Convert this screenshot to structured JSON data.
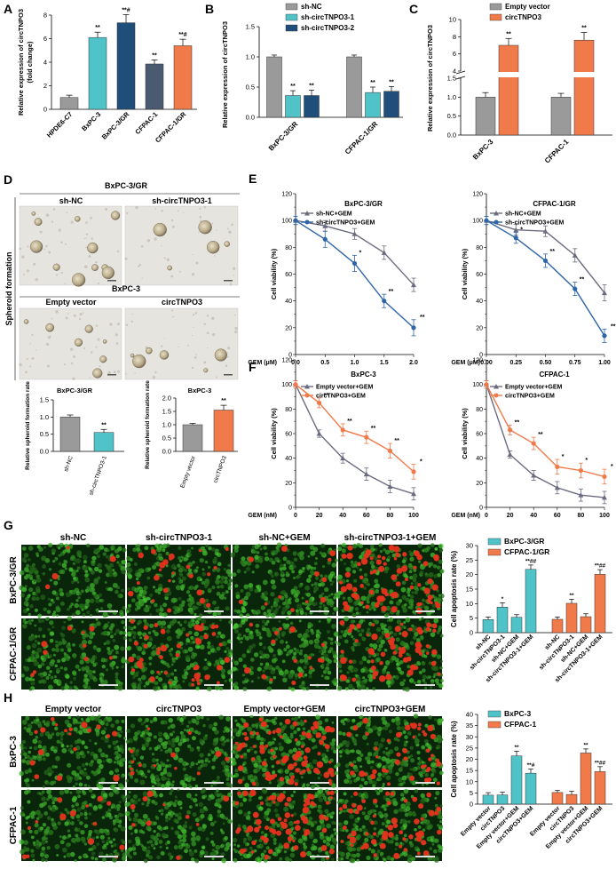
{
  "figure": {
    "panels": [
      "A",
      "B",
      "C",
      "D",
      "E",
      "F",
      "G",
      "H"
    ]
  },
  "colors": {
    "gray": "#9a9a9a",
    "cyan": "#4fc3c8",
    "navy": "#1f4e7a",
    "slate": "#4a5a70",
    "orange": "#f07a4a",
    "blue_line": "#2e64a8",
    "gray_line": "#6b6b80",
    "micro_green": "#2a8a2a",
    "micro_dark": "#0a260a"
  },
  "chart_data": [
    {
      "panel": "A",
      "type": "bar",
      "ylabel": "Relative expression of circTNPO3 (fold change)",
      "ylabel_lines": [
        "Relative expression of circTNPO3",
        "(fold change)"
      ],
      "ylim": [
        0,
        8
      ],
      "yticks": [
        0,
        2,
        4,
        6,
        8
      ],
      "categories": [
        "HPDE6-C7",
        "BxPC-3",
        "BxPC-3/GR",
        "CFPAC-1",
        "CFPAC-1/GR"
      ],
      "values": [
        1.0,
        6.1,
        7.35,
        3.85,
        5.4
      ],
      "errors": [
        0.2,
        0.45,
        0.7,
        0.35,
        0.55
      ],
      "bar_colors": [
        "#9a9a9a",
        "#4fc3c8",
        "#1f4e7a",
        "#4a5a70",
        "#f07a4a"
      ],
      "annotations": [
        "",
        "**",
        "**#",
        "**",
        "**#"
      ]
    },
    {
      "panel": "B",
      "type": "bar",
      "ylabel": "Relative expression of circTNPO3",
      "ylim": [
        0,
        1.5
      ],
      "yticks": [
        0.0,
        0.5,
        1.0,
        1.5
      ],
      "categories": [
        "BxPC-3/GR",
        "CFPAC-1/GR"
      ],
      "series": [
        {
          "name": "sh-NC",
          "values": [
            1.0,
            1.0
          ],
          "errors": [
            0.03,
            0.03
          ],
          "color": "#9a9a9a",
          "annotations": [
            "",
            ""
          ]
        },
        {
          "name": "sh-circTNPO3-1",
          "values": [
            0.36,
            0.41
          ],
          "errors": [
            0.08,
            0.09
          ],
          "color": "#4fc3c8",
          "annotations": [
            "**",
            "**"
          ]
        },
        {
          "name": "sh-circTNPO3-2",
          "values": [
            0.36,
            0.43
          ],
          "errors": [
            0.09,
            0.08
          ],
          "color": "#1f4e7a",
          "annotations": [
            "**",
            "**"
          ]
        }
      ],
      "legend": "top-right"
    },
    {
      "panel": "C",
      "type": "bar",
      "ylabel": "Relative expression of circTNPO3",
      "axis_break": [
        1.5,
        4
      ],
      "yticks_lower": [
        0.0,
        0.5,
        1.0,
        1.5
      ],
      "yticks_upper": [
        4,
        6,
        8,
        10
      ],
      "categories": [
        "BxPC-3",
        "CFPAC-1"
      ],
      "series": [
        {
          "name": "Empty vector",
          "values": [
            1.0,
            1.0
          ],
          "errors": [
            0.12,
            0.1
          ],
          "color": "#9a9a9a",
          "annotations": [
            "",
            ""
          ]
        },
        {
          "name": "circTNPO3",
          "values": [
            7.0,
            7.6
          ],
          "errors": [
            0.8,
            0.9
          ],
          "color": "#f07a4a",
          "annotations": [
            "**",
            "**"
          ]
        }
      ],
      "legend": "top"
    },
    {
      "panel": "D-left",
      "type": "bar",
      "title": "BxPC-3/GR",
      "ylabel": "Relative spheroid formation rate",
      "ylim": [
        0,
        1.5
      ],
      "yticks": [
        0.0,
        0.5,
        1.0,
        1.5
      ],
      "categories": [
        "sh-NC",
        "sh-circTNPO3-1"
      ],
      "values": [
        1.0,
        0.55
      ],
      "errors": [
        0.06,
        0.09
      ],
      "bar_colors": [
        "#9a9a9a",
        "#4fc3c8"
      ],
      "annotations": [
        "",
        "**"
      ]
    },
    {
      "panel": "D-right",
      "type": "bar",
      "title": "BxPC-3",
      "ylabel": "Relative spheroid formation rate",
      "ylim": [
        0,
        2.0
      ],
      "yticks": [
        0.0,
        0.5,
        1.0,
        1.5,
        2.0
      ],
      "categories": [
        "Empty vector",
        "circTNPO3"
      ],
      "values": [
        1.0,
        1.55
      ],
      "errors": [
        0.05,
        0.18
      ],
      "bar_colors": [
        "#9a9a9a",
        "#f07a4a"
      ],
      "annotations": [
        "",
        "**"
      ]
    },
    {
      "panel": "E-left",
      "type": "line",
      "title": "BxPC-3/GR",
      "xlabel": "GEM (μM)",
      "ylabel": "Cell viability (%)",
      "x": [
        0.0,
        0.5,
        1.0,
        1.5,
        2.0
      ],
      "xticklabels": [
        "0.0",
        "0.5",
        "1.0",
        "1.5",
        "2.0"
      ],
      "ylim": [
        0,
        120
      ],
      "yticks": [
        0,
        10,
        20,
        30,
        40,
        50,
        60,
        70,
        80,
        90,
        100,
        110,
        120
      ],
      "series": [
        {
          "name": "sh-NC+GEM",
          "values": [
            100,
            96,
            90,
            76,
            52
          ],
          "errors": [
            3,
            4,
            4,
            5,
            5
          ],
          "color": "#6b6b80",
          "annotations": [
            "",
            "",
            "",
            "",
            ""
          ]
        },
        {
          "name": "sh-circTNPO3+GEM",
          "values": [
            100,
            86,
            68,
            40,
            20
          ],
          "errors": [
            3,
            6,
            6,
            5,
            6
          ],
          "color": "#2e64a8",
          "annotations": [
            "",
            "",
            "*",
            "**",
            "**"
          ]
        }
      ],
      "legend": "top-right"
    },
    {
      "panel": "E-right",
      "type": "line",
      "title": "CFPAC-1/GR",
      "xlabel": "GEM (μM)",
      "ylabel": "Cell viability (%)",
      "x": [
        0.0,
        0.25,
        0.5,
        0.75,
        1.0
      ],
      "xticklabels": [
        "0.00",
        "0.25",
        "0.50",
        "0.75",
        "1.00"
      ],
      "ylim": [
        0,
        120
      ],
      "yticks": [
        0,
        10,
        20,
        30,
        40,
        50,
        60,
        70,
        80,
        90,
        100,
        110,
        120
      ],
      "series": [
        {
          "name": "sh-NC+GEM",
          "values": [
            100,
            93,
            92,
            74,
            46
          ],
          "errors": [
            3,
            4,
            4,
            5,
            6
          ],
          "color": "#6b6b80",
          "annotations": [
            "",
            "",
            "",
            "",
            ""
          ]
        },
        {
          "name": "sh-circTNPO3+GEM",
          "values": [
            100,
            87,
            70,
            49,
            14
          ],
          "errors": [
            3,
            4,
            5,
            5,
            5
          ],
          "color": "#2e64a8",
          "annotations": [
            "",
            "*",
            "**",
            "**",
            "**"
          ]
        }
      ],
      "legend": "top-right"
    },
    {
      "panel": "F-left",
      "type": "line",
      "title": "BxPC-3",
      "xlabel": "GEM (nM)",
      "ylabel": "Cell viability (%)",
      "x": [
        0,
        20,
        40,
        60,
        80,
        100
      ],
      "xticklabels": [
        "0",
        "20",
        "40",
        "60",
        "80",
        "100"
      ],
      "ylim": [
        0,
        120
      ],
      "yticks": [
        0,
        10,
        20,
        30,
        40,
        50,
        60,
        70,
        80,
        90,
        100,
        110,
        120
      ],
      "series": [
        {
          "name": "Empty vector+GEM",
          "values": [
            100,
            60,
            40,
            27,
            17,
            11
          ],
          "errors": [
            3,
            3,
            4,
            5,
            5,
            5
          ],
          "color": "#6b6b80",
          "annotations": [
            "",
            "",
            "",
            "",
            "",
            ""
          ]
        },
        {
          "name": "circTNPO3+GEM",
          "values": [
            100,
            85,
            63,
            57,
            46,
            29
          ],
          "errors": [
            3,
            4,
            5,
            5,
            6,
            6
          ],
          "color": "#f07a4a",
          "annotations": [
            "",
            "**",
            "**",
            "**",
            "**",
            "*"
          ]
        }
      ],
      "legend": "top-right"
    },
    {
      "panel": "F-right",
      "type": "line",
      "title": "CFPAC-1",
      "xlabel": "GEM (nM)",
      "ylabel": "Cell viability (%)",
      "x": [
        0,
        20,
        40,
        60,
        80,
        100
      ],
      "xticklabels": [
        "0",
        "20",
        "40",
        "60",
        "80",
        "100"
      ],
      "ylim": [
        0,
        120
      ],
      "yticks": [
        0,
        10,
        20,
        30,
        40,
        50,
        60,
        70,
        80,
        90,
        100,
        110,
        120
      ],
      "series": [
        {
          "name": "Empty vector+GEM",
          "values": [
            100,
            43,
            26,
            16,
            10,
            8
          ],
          "errors": [
            3,
            3,
            4,
            5,
            5,
            5
          ],
          "color": "#6b6b80",
          "annotations": [
            "",
            "",
            "",
            "",
            "",
            ""
          ]
        },
        {
          "name": "circTNPO3+GEM",
          "values": [
            100,
            63,
            52,
            33,
            30,
            25
          ],
          "errors": [
            3,
            4,
            5,
            6,
            6,
            6
          ],
          "color": "#f07a4a",
          "annotations": [
            "",
            "**",
            "**",
            "*",
            "*",
            "*"
          ]
        }
      ],
      "legend": "top-right"
    },
    {
      "panel": "G",
      "type": "bar",
      "ylabel": "Cell apoptosis rate (%)",
      "ylim": [
        0,
        30
      ],
      "yticks": [
        0,
        5,
        10,
        15,
        20,
        25,
        30
      ],
      "categories": [
        "sh-NC",
        "sh-circTNPO3-1",
        "sh-NC+GEM",
        "sh-circTNPO3-1+GEM"
      ],
      "series": [
        {
          "name": "BxPC-3/GR",
          "values": [
            4.5,
            8.8,
            5.3,
            21.8
          ],
          "errors": [
            0.9,
            1.5,
            0.9,
            1.5
          ],
          "color": "#4fc3c8",
          "annotations": [
            "",
            "*",
            "",
            "**##"
          ]
        },
        {
          "name": "CFPAC-1/GR",
          "values": [
            4.6,
            10.1,
            5.5,
            20.1
          ],
          "errors": [
            0.8,
            1.4,
            1.0,
            1.6
          ],
          "color": "#f07a4a",
          "annotations": [
            "",
            "**",
            "",
            "**##"
          ]
        }
      ],
      "legend": "top-right"
    },
    {
      "panel": "H",
      "type": "bar",
      "ylabel": "Cell apoptosis rate (%)",
      "ylim": [
        0,
        40
      ],
      "yticks": [
        0,
        5,
        10,
        15,
        20,
        25,
        30,
        35,
        40
      ],
      "categories": [
        "Empty vector",
        "circTNPO3",
        "Empty vector+GEM",
        "circTNPO3+GEM"
      ],
      "series": [
        {
          "name": "BxPC-3",
          "values": [
            4.0,
            4.1,
            21.5,
            13.8
          ],
          "errors": [
            1.1,
            1.2,
            2.1,
            1.8
          ],
          "color": "#4fc3c8",
          "annotations": [
            "",
            "",
            "**",
            "**#"
          ]
        },
        {
          "name": "CFPAC-1",
          "values": [
            5.2,
            4.3,
            22.8,
            14.5
          ],
          "errors": [
            0.9,
            1.4,
            1.8,
            2.2
          ],
          "color": "#f07a4a",
          "annotations": [
            "",
            "",
            "**",
            "**##"
          ]
        }
      ],
      "legend": "top-right"
    }
  ],
  "panel_d": {
    "top_title": "BxPC-3/GR",
    "top_labels": [
      "sh-NC",
      "sh-circTNPO3-1"
    ],
    "mid_title": "BxPC-3",
    "mid_labels": [
      "Empty vector",
      "circTNPO3"
    ],
    "side_label": "Spheroid formation"
  },
  "panel_g": {
    "col_labels": [
      "sh-NC",
      "sh-circTNPO3-1",
      "sh-NC+GEM",
      "sh-circTNPO3-1+GEM"
    ],
    "row_labels": [
      "BxPC-3/GR",
      "CFPAC-1/GR"
    ],
    "red_density": [
      [
        4,
        24,
        12,
        70
      ],
      [
        10,
        45,
        16,
        60
      ]
    ]
  },
  "panel_h": {
    "col_labels": [
      "Empty vector",
      "circTNPO3",
      "Empty vector+GEM",
      "circTNPO3+GEM"
    ],
    "row_labels": [
      "BxPC-3",
      "CFPAC-1"
    ],
    "red_density": [
      [
        18,
        14,
        80,
        45
      ],
      [
        14,
        10,
        75,
        55
      ]
    ]
  }
}
